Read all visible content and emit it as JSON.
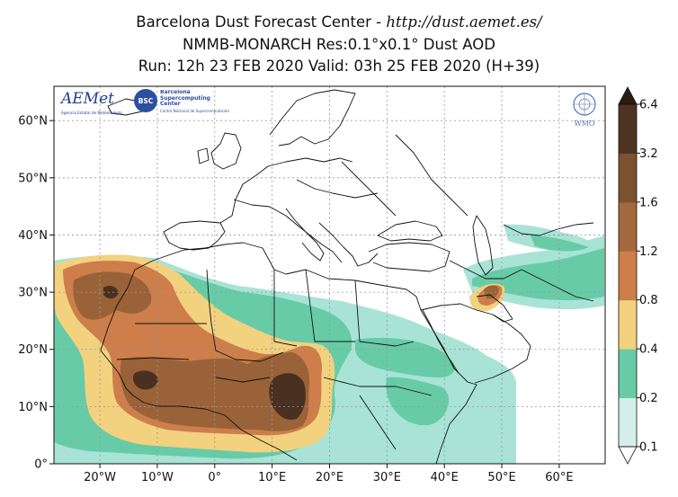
{
  "title": {
    "line1_prefix": "Barcelona Dust Forecast Center - ",
    "line1_url": "http://dust.aemet.es/",
    "line2": "NMMB-MONARCH   Res:0.1°x0.1°    Dust AOD",
    "line3": "Run: 12h 23 FEB 2020   Valid: 03h 25 FEB 2020 (H+39)"
  },
  "map": {
    "lon_range": [
      -28,
      68
    ],
    "lat_range": [
      0,
      66
    ],
    "lon_ticks": [
      {
        "value": -20,
        "label": "20°W"
      },
      {
        "value": -10,
        "label": "10°W"
      },
      {
        "value": 0,
        "label": "0°"
      },
      {
        "value": 10,
        "label": "10°E"
      },
      {
        "value": 20,
        "label": "20°E"
      },
      {
        "value": 30,
        "label": "30°E"
      },
      {
        "value": 40,
        "label": "40°E"
      },
      {
        "value": 50,
        "label": "50°E"
      },
      {
        "value": 60,
        "label": "60°E"
      }
    ],
    "lat_ticks": [
      {
        "value": 0,
        "label": "0°"
      },
      {
        "value": 10,
        "label": "10°N"
      },
      {
        "value": 20,
        "label": "20°N"
      },
      {
        "value": 30,
        "label": "30°N"
      },
      {
        "value": 40,
        "label": "40°N"
      },
      {
        "value": 50,
        "label": "50°N"
      },
      {
        "value": 60,
        "label": "60°N"
      }
    ]
  },
  "logos": {
    "aemet": "AEMet",
    "aemet_sub": "Agencia Estatal de Meteorología",
    "bsc": "BSC",
    "bsc_name": "Barcelona Supercomputing Center",
    "bsc_sub": "Centro Nacional de Supercomputación",
    "wmo": "WMO"
  },
  "colorbar": {
    "levels": [
      "0.1",
      "0.2",
      "0.4",
      "0.8",
      "1.2",
      "1.6",
      "3.2",
      "6.4"
    ],
    "colors": [
      "#d4efea",
      "#67cba7",
      "#f2d17f",
      "#cd7e4a",
      "#a3683b",
      "#7b5230",
      "#4e3320"
    ],
    "over_color": "#2b1d10",
    "under_color": "#ffffff"
  },
  "colors": {
    "light": "#a8e3d6",
    "teal": "#67cba7",
    "yellow": "#f2d17f",
    "orange": "#cd7e4a",
    "brown": "#9a6238",
    "dark": "#4a3020",
    "land_edge": "#111111"
  }
}
